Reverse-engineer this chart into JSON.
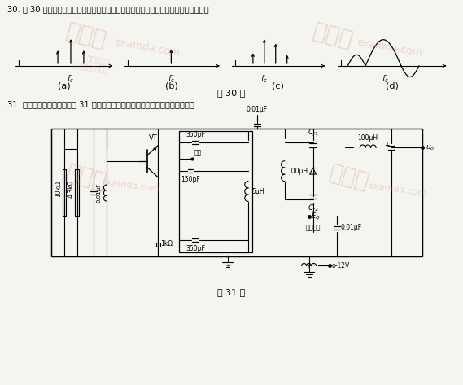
{
  "title_q30": "30. 题 30 图所示四种已调信号的频谱结构，试分析判断它们各属于哪种已调信号频谱。",
  "title_q31": "31. 变容二极管调频电路如题 31 图所示，试画出该调频振荡器的高频交流通路。",
  "caption30": "题 30 图",
  "caption31": "题 31 图",
  "bg_color": "#f5f5f0",
  "text_color": "#000000",
  "label_a": "(a)",
  "label_b": "(b)",
  "label_c": "(c)",
  "label_d": "(d)"
}
